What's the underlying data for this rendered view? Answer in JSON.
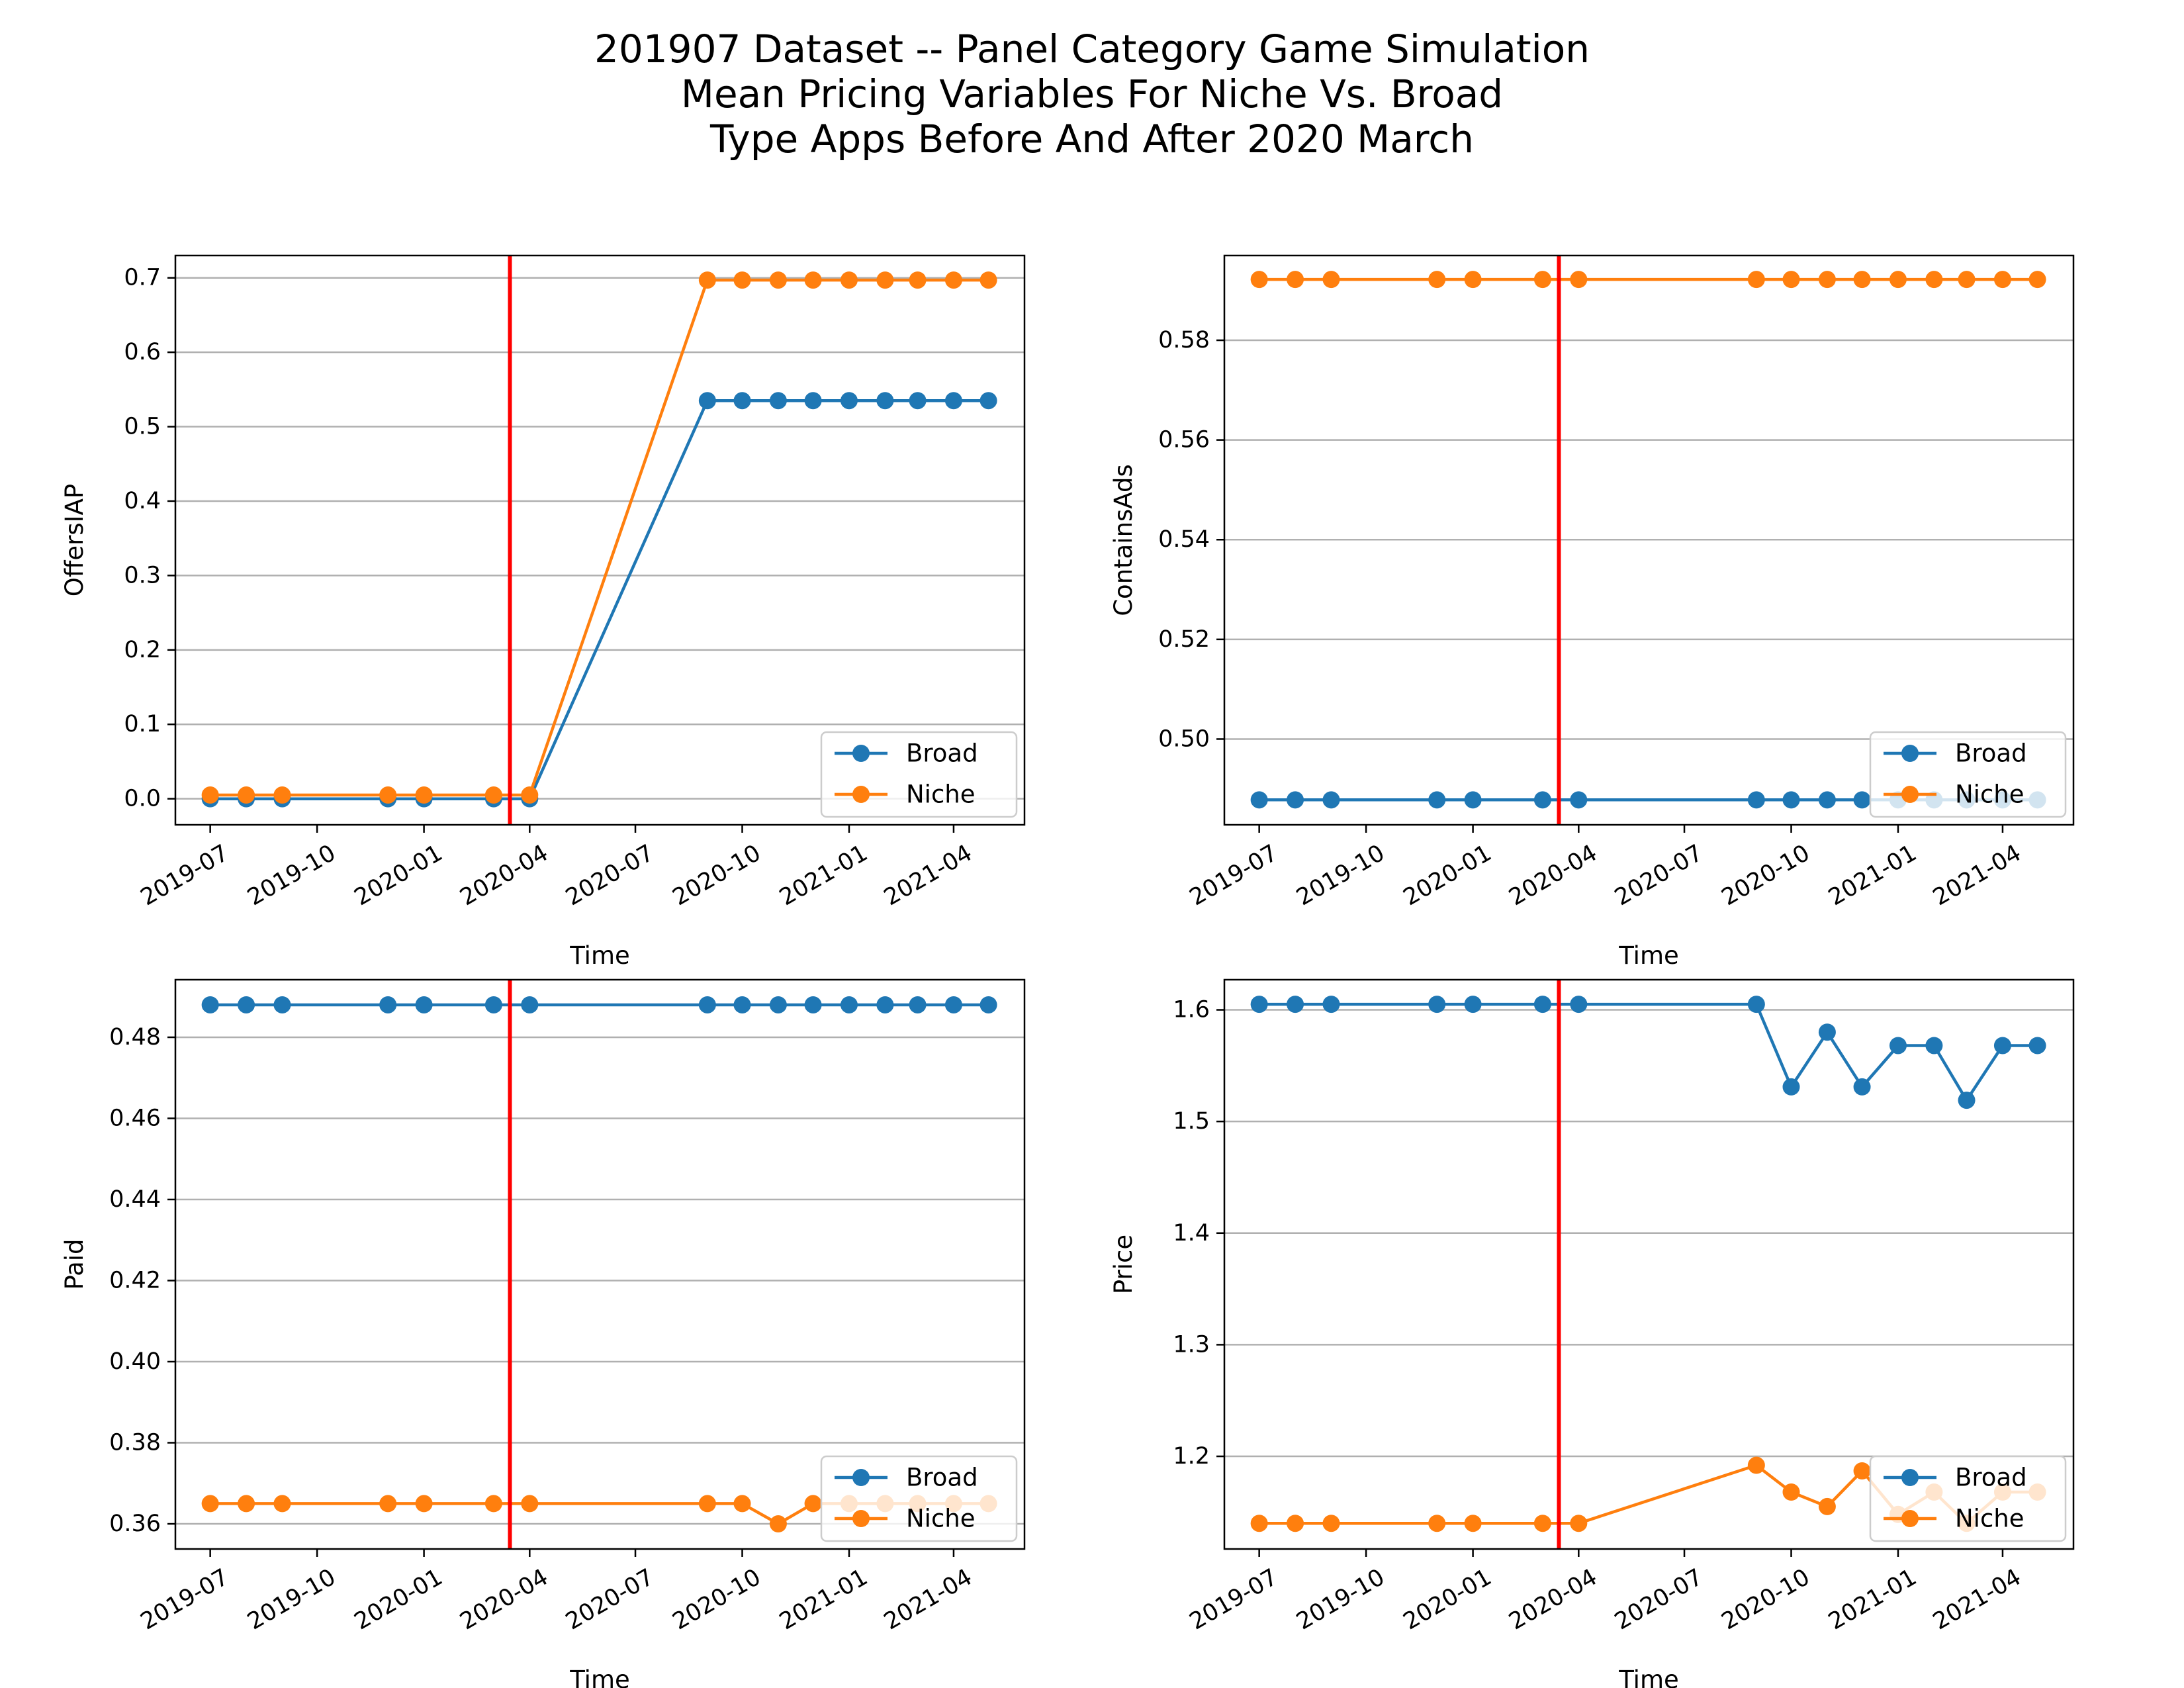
{
  "figure": {
    "title_lines": [
      "201907 Dataset -- Panel Category Game Simulation",
      "Mean Pricing Variables For Niche Vs. Broad",
      "Type Apps Before And After 2020 March"
    ]
  },
  "colors": {
    "broad": "#1f77b4",
    "niche": "#ff7f0e",
    "event_line": "#ff0000",
    "grid": "#b0b0b0"
  },
  "chart_data": [
    {
      "type": "line",
      "ylabel": "OffersIAP",
      "xlabel": "Time",
      "ylim": [
        -0.035,
        0.73
      ],
      "yticks": [
        0.0,
        0.1,
        0.2,
        0.3,
        0.4,
        0.5,
        0.6,
        0.7
      ],
      "ytick_labels": [
        "0.0",
        "0.1",
        "0.2",
        "0.3",
        "0.4",
        "0.5",
        "0.6",
        "0.7"
      ],
      "event_line_x": "2020-03-15",
      "x": [
        "2019-07-01",
        "2019-08-01",
        "2019-09-01",
        "2019-12-01",
        "2020-01-01",
        "2020-03-01",
        "2020-04-01",
        "2020-09-01",
        "2020-10-01",
        "2020-11-01",
        "2020-12-01",
        "2021-01-01",
        "2021-02-01",
        "2021-03-01",
        "2021-04-01",
        "2021-05-01"
      ],
      "series": [
        {
          "name": "Broad",
          "values": [
            0.0,
            0.0,
            0.0,
            0.0,
            0.0,
            0.0,
            0.0,
            0.535,
            0.535,
            0.535,
            0.535,
            0.535,
            0.535,
            0.535,
            0.535,
            0.535
          ]
        },
        {
          "name": "Niche",
          "values": [
            0.005,
            0.005,
            0.005,
            0.005,
            0.005,
            0.005,
            0.005,
            0.697,
            0.697,
            0.697,
            0.697,
            0.697,
            0.697,
            0.697,
            0.697,
            0.697
          ]
        }
      ],
      "grid": "y",
      "legend_loc": "lower right"
    },
    {
      "type": "line",
      "ylabel": "ContainsAds",
      "xlabel": "Time",
      "ylim": [
        0.4828,
        0.597
      ],
      "yticks": [
        0.5,
        0.52,
        0.54,
        0.56,
        0.58
      ],
      "ytick_labels": [
        "0.50",
        "0.52",
        "0.54",
        "0.56",
        "0.58"
      ],
      "event_line_x": "2020-03-15",
      "x": [
        "2019-07-01",
        "2019-08-01",
        "2019-09-01",
        "2019-12-01",
        "2020-01-01",
        "2020-03-01",
        "2020-04-01",
        "2020-09-01",
        "2020-10-01",
        "2020-11-01",
        "2020-12-01",
        "2021-01-01",
        "2021-02-01",
        "2021-03-01",
        "2021-04-01",
        "2021-05-01"
      ],
      "series": [
        {
          "name": "Broad",
          "values": [
            0.4878,
            0.4878,
            0.4878,
            0.4878,
            0.4878,
            0.4878,
            0.4878,
            0.4878,
            0.4878,
            0.4878,
            0.4878,
            0.4878,
            0.4878,
            0.4878,
            0.4878,
            0.4878
          ]
        },
        {
          "name": "Niche",
          "values": [
            0.5922,
            0.5922,
            0.5922,
            0.5922,
            0.5922,
            0.5922,
            0.5922,
            0.5922,
            0.5922,
            0.5922,
            0.5922,
            0.5922,
            0.5922,
            0.5922,
            0.5922,
            0.5922
          ]
        }
      ],
      "grid": "y",
      "legend_loc": "lower right"
    },
    {
      "type": "line",
      "ylabel": "Paid",
      "xlabel": "Time",
      "ylim": [
        0.3538,
        0.4942
      ],
      "yticks": [
        0.36,
        0.38,
        0.4,
        0.42,
        0.44,
        0.46,
        0.48
      ],
      "ytick_labels": [
        "0.36",
        "0.38",
        "0.40",
        "0.42",
        "0.44",
        "0.46",
        "0.48"
      ],
      "event_line_x": "2020-03-15",
      "x": [
        "2019-07-01",
        "2019-08-01",
        "2019-09-01",
        "2019-12-01",
        "2020-01-01",
        "2020-03-01",
        "2020-04-01",
        "2020-09-01",
        "2020-10-01",
        "2020-11-01",
        "2020-12-01",
        "2021-01-01",
        "2021-02-01",
        "2021-03-01",
        "2021-04-01",
        "2021-05-01"
      ],
      "series": [
        {
          "name": "Broad",
          "values": [
            0.488,
            0.488,
            0.488,
            0.488,
            0.488,
            0.488,
            0.488,
            0.488,
            0.488,
            0.488,
            0.488,
            0.488,
            0.488,
            0.488,
            0.488,
            0.488
          ]
        },
        {
          "name": "Niche",
          "values": [
            0.365,
            0.365,
            0.365,
            0.365,
            0.365,
            0.365,
            0.365,
            0.365,
            0.365,
            0.36,
            0.365,
            0.365,
            0.365,
            0.365,
            0.365,
            0.365
          ]
        }
      ],
      "grid": "y",
      "legend_loc": "lower right"
    },
    {
      "type": "line",
      "ylabel": "Price",
      "xlabel": "Time",
      "ylim": [
        1.117,
        1.627
      ],
      "yticks": [
        1.2,
        1.3,
        1.4,
        1.5,
        1.6
      ],
      "ytick_labels": [
        "1.2",
        "1.3",
        "1.4",
        "1.5",
        "1.6"
      ],
      "event_line_x": "2020-03-15",
      "x": [
        "2019-07-01",
        "2019-08-01",
        "2019-09-01",
        "2019-12-01",
        "2020-01-01",
        "2020-03-01",
        "2020-04-01",
        "2020-09-01",
        "2020-10-01",
        "2020-11-01",
        "2020-12-01",
        "2021-01-01",
        "2021-02-01",
        "2021-03-01",
        "2021-04-01",
        "2021-05-01"
      ],
      "series": [
        {
          "name": "Broad",
          "values": [
            1.605,
            1.605,
            1.605,
            1.605,
            1.605,
            1.605,
            1.605,
            1.605,
            1.531,
            1.58,
            1.531,
            1.568,
            1.568,
            1.519,
            1.568,
            1.568
          ]
        },
        {
          "name": "Niche",
          "values": [
            1.14,
            1.14,
            1.14,
            1.14,
            1.14,
            1.14,
            1.14,
            1.192,
            1.168,
            1.155,
            1.187,
            1.148,
            1.168,
            1.14,
            1.168,
            1.168
          ]
        }
      ],
      "grid": "y",
      "legend_loc": "lower right"
    }
  ],
  "x_axis": {
    "range": [
      "2019-06-01",
      "2021-06-01"
    ],
    "ticks": [
      "2019-07-01",
      "2019-10-01",
      "2020-01-01",
      "2020-04-01",
      "2020-07-01",
      "2020-10-01",
      "2021-01-01",
      "2021-04-01"
    ],
    "tick_labels": [
      "2019-07",
      "2019-10",
      "2020-01",
      "2020-04",
      "2020-07",
      "2020-10",
      "2021-01",
      "2021-04"
    ]
  }
}
